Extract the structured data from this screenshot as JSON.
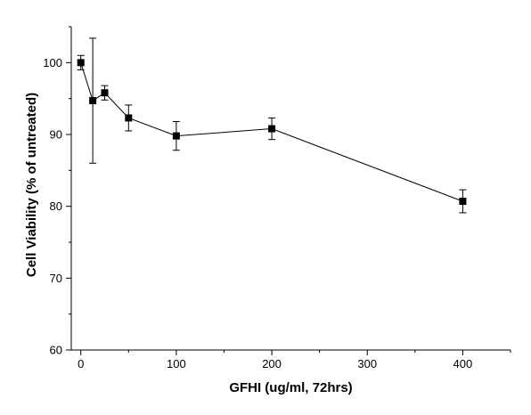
{
  "chart_data": {
    "type": "scatter",
    "title": "",
    "xlabel": "GFHI (ug/ml, 72hrs)",
    "ylabel": "Cell Viability (% of untreated)",
    "xlim": [
      -10,
      450
    ],
    "ylim": [
      60,
      105
    ],
    "xticks": [
      0,
      100,
      200,
      300,
      400
    ],
    "yticks": [
      60,
      70,
      80,
      90,
      100
    ],
    "grid": false,
    "legend": "none",
    "line_color": "#000000",
    "marker": "square",
    "series": [
      {
        "x": [
          0,
          12.5,
          25,
          50,
          100,
          200,
          400
        ],
        "y": [
          100.0,
          94.7,
          95.8,
          92.3,
          89.8,
          90.8,
          80.7
        ],
        "err": [
          1.0,
          8.7,
          1.0,
          1.8,
          2.0,
          1.5,
          1.6
        ]
      }
    ]
  }
}
